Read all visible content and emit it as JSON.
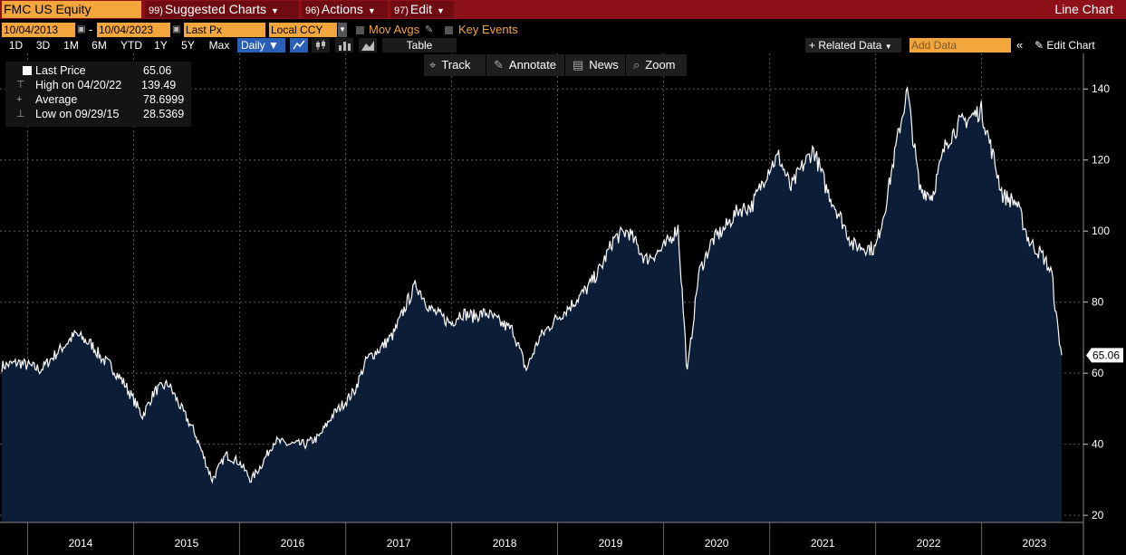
{
  "header": {
    "ticker": "FMC US Equity",
    "menus": [
      {
        "num": "99)",
        "label": "Suggested Charts"
      },
      {
        "num": "96)",
        "label": "Actions"
      },
      {
        "num": "97)",
        "label": "Edit"
      }
    ],
    "chart_type_label": "Line Chart"
  },
  "controls": {
    "start_date": "10/04/2013",
    "end_date": "10/04/2023",
    "field": "Last Px",
    "currency": "Local CCY",
    "mov_avgs": "Mov Avgs",
    "key_events": "Key Events",
    "ranges": [
      "1D",
      "3D",
      "1M",
      "6M",
      "YTD",
      "1Y",
      "5Y",
      "Max"
    ],
    "frequency": "Daily",
    "table_label": "Table",
    "related_data": "Related Data",
    "add_data_placeholder": "Add Data",
    "edit_chart": "Edit Chart"
  },
  "toolbar": [
    "Track",
    "Annotate",
    "News",
    "Zoom"
  ],
  "legend": [
    {
      "label": "Last Price",
      "value": "65.06"
    },
    {
      "label": "High on 04/20/22",
      "value": "139.49"
    },
    {
      "label": "Average",
      "value": "78.6999"
    },
    {
      "label": "Low on 09/29/15",
      "value": "28.5369"
    }
  ],
  "colors": {
    "header": "#8e1018",
    "accent": "#f3a63c",
    "fill": "#0c1d38",
    "line": "#ffffff",
    "selected": "#2a5fb6"
  },
  "chart_data": {
    "type": "area",
    "x": [
      "2013-10-04",
      "2013-12-01",
      "2014-02-15",
      "2014-04-15",
      "2014-06-15",
      "2014-08-10",
      "2014-09-15",
      "2014-10-15",
      "2014-12-01",
      "2015-02-01",
      "2015-03-15",
      "2015-05-01",
      "2015-06-15",
      "2015-08-01",
      "2015-09-29",
      "2015-11-15",
      "2015-12-31",
      "2016-02-10",
      "2016-03-15",
      "2016-05-01",
      "2016-06-15",
      "2016-08-15",
      "2016-10-01",
      "2016-11-15",
      "2016-12-31",
      "2017-01-31",
      "2017-03-15",
      "2017-05-01",
      "2017-06-15",
      "2017-08-01",
      "2017-09-01",
      "2017-10-20",
      "2017-12-31",
      "2018-02-01",
      "2018-03-15",
      "2018-05-01",
      "2018-06-20",
      "2018-08-01",
      "2018-09-15",
      "2018-10-31",
      "2018-12-24",
      "2019-02-15",
      "2019-04-15",
      "2019-06-01",
      "2019-07-15",
      "2019-09-01",
      "2019-10-31",
      "2019-12-31",
      "2020-02-20",
      "2020-03-23",
      "2020-05-01",
      "2020-06-15",
      "2020-08-01",
      "2020-09-15",
      "2020-10-31",
      "2020-12-31",
      "2021-02-01",
      "2021-03-15",
      "2021-04-15",
      "2021-06-01",
      "2021-07-15",
      "2021-09-01",
      "2021-10-15",
      "2021-12-31",
      "2022-02-01",
      "2022-03-15",
      "2022-04-20",
      "2022-06-01",
      "2022-07-15",
      "2022-09-01",
      "2022-10-15",
      "2022-12-31",
      "2023-02-01",
      "2023-03-15",
      "2023-05-01",
      "2023-06-15",
      "2023-07-31",
      "2023-08-31",
      "2023-09-15",
      "2023-10-04"
    ],
    "y": [
      62,
      63,
      61,
      66,
      71,
      68,
      64,
      62,
      57,
      48,
      55,
      57,
      50,
      43,
      30,
      37,
      35,
      30,
      34,
      41,
      40,
      40,
      42,
      48,
      52,
      55,
      64,
      67,
      71,
      80,
      85,
      78,
      74,
      77,
      76,
      77,
      74,
      72,
      61,
      70,
      75,
      79,
      84,
      90,
      98,
      100,
      92,
      95,
      101,
      60,
      88,
      97,
      101,
      106,
      107,
      118,
      121,
      112,
      117,
      123,
      112,
      104,
      96,
      95,
      106,
      125,
      139.49,
      112,
      110,
      125,
      130,
      134,
      124,
      110,
      108,
      97,
      93,
      88,
      76,
      65.06
    ],
    "title": "",
    "xlabel": "",
    "ylabel": "",
    "ylim": [
      18,
      150
    ],
    "y_ticks": [
      20,
      40,
      60,
      80,
      100,
      120,
      140
    ],
    "year_labels": [
      "2014",
      "2015",
      "2016",
      "2017",
      "2018",
      "2019",
      "2020",
      "2021",
      "2022",
      "2023"
    ],
    "last_value_label": "65.06",
    "grid": true,
    "axis_position": "right"
  }
}
